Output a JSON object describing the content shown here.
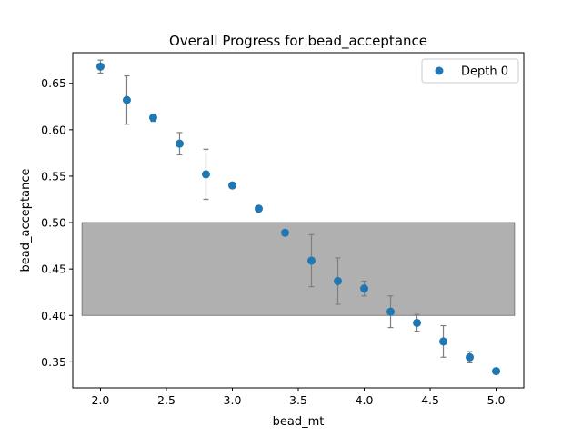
{
  "chart_data": {
    "type": "scatter",
    "title": "Overall Progress for bead_acceptance",
    "xlabel": "bead_mt",
    "ylabel": "bead_acceptance",
    "xlim": [
      1.79,
      5.21
    ],
    "ylim": [
      0.322,
      0.683
    ],
    "xticks": [
      2.0,
      2.5,
      3.0,
      3.5,
      4.0,
      4.5,
      5.0
    ],
    "xtick_labels": [
      "2.0",
      "2.5",
      "3.0",
      "3.5",
      "4.0",
      "4.5",
      "5.0"
    ],
    "yticks": [
      0.35,
      0.4,
      0.45,
      0.5,
      0.55,
      0.6,
      0.65
    ],
    "ytick_labels": [
      "0.35",
      "0.40",
      "0.45",
      "0.50",
      "0.55",
      "0.60",
      "0.65"
    ],
    "grid": false,
    "legend_position": "top-right",
    "target_band": {
      "x": [
        1.86,
        5.14
      ],
      "y": [
        0.4,
        0.5
      ],
      "color": "#b0b0b0"
    },
    "series": [
      {
        "name": "Depth 0",
        "color": "#1f77b4",
        "x": [
          2.0,
          2.2,
          2.4,
          2.6,
          2.8,
          3.0,
          3.2,
          3.4,
          3.6,
          3.8,
          4.0,
          4.2,
          4.4,
          4.6,
          4.8,
          5.0
        ],
        "y": [
          0.668,
          0.632,
          0.613,
          0.585,
          0.552,
          0.54,
          0.515,
          0.489,
          0.459,
          0.437,
          0.429,
          0.404,
          0.392,
          0.372,
          0.355,
          0.34
        ],
        "err": [
          0.007,
          0.026,
          0.004,
          0.012,
          0.027,
          0.002,
          0.003,
          0.003,
          0.028,
          0.025,
          0.008,
          0.017,
          0.009,
          0.017,
          0.006,
          0.002
        ]
      }
    ]
  }
}
